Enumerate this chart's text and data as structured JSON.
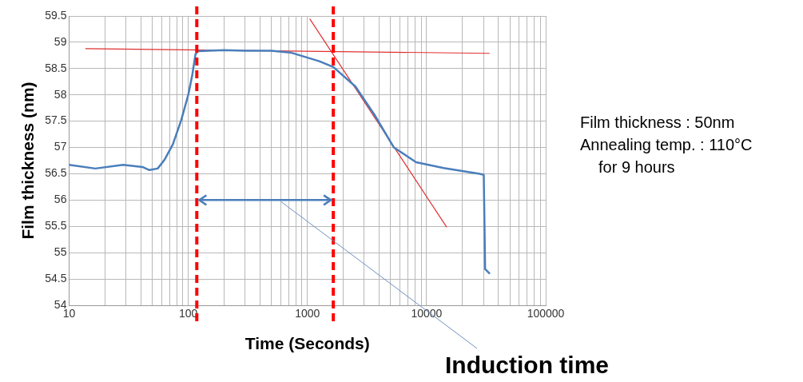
{
  "chart_data": {
    "type": "line",
    "xlabel": "Time (Seconds)",
    "ylabel": "Film thickness (nm)",
    "log": "x",
    "grid": true,
    "legend": false,
    "marker": "none",
    "xlim": [
      10,
      100000
    ],
    "ylim": [
      54,
      59.5
    ],
    "xticks": [
      10,
      {
        "value": 20,
        "label": null
      },
      {
        "value": 30,
        "label": null
      },
      {
        "value": 40,
        "label": null
      },
      {
        "value": 50,
        "label": null
      },
      {
        "value": 60,
        "label": null
      },
      {
        "value": 70,
        "label": null
      },
      {
        "value": 80,
        "label": null
      },
      {
        "value": 90,
        "label": null
      },
      100,
      {
        "value": 200,
        "label": null
      },
      {
        "value": 300,
        "label": null
      },
      {
        "value": 400,
        "label": null
      },
      {
        "value": 500,
        "label": null
      },
      {
        "value": 600,
        "label": null
      },
      {
        "value": 700,
        "label": null
      },
      {
        "value": 800,
        "label": null
      },
      {
        "value": 900,
        "label": null
      },
      1000,
      {
        "value": 2000,
        "label": null
      },
      {
        "value": 3000,
        "label": null
      },
      {
        "value": 4000,
        "label": null
      },
      {
        "value": 5000,
        "label": null
      },
      {
        "value": 6000,
        "label": null
      },
      {
        "value": 7000,
        "label": null
      },
      {
        "value": 8000,
        "label": null
      },
      {
        "value": 9000,
        "label": null
      },
      10000,
      {
        "value": 20000,
        "label": null
      },
      {
        "value": 30000,
        "label": null
      },
      {
        "value": 40000,
        "label": null
      },
      {
        "value": 50000,
        "label": null
      },
      {
        "value": 60000,
        "label": null
      },
      {
        "value": 70000,
        "label": null
      },
      {
        "value": 80000,
        "label": null
      },
      {
        "value": 90000,
        "label": null
      },
      100000
    ],
    "yticks": [
      54,
      54.5,
      55,
      55.5,
      56,
      56.5,
      57,
      57.5,
      58,
      58.5,
      59,
      59.5
    ],
    "series": [
      {
        "color": "#4a7ebb",
        "line_style": "solid",
        "x": [
          10,
          16.6,
          28.4,
          41.3,
          47.2,
          55.4,
          63.4,
          74.3,
          87.3,
          100,
          108,
          115,
          120,
          200,
          300,
          500,
          738,
          1260,
          1650,
          2530,
          3660,
          5320,
          8170,
          13900,
          27900,
          30200,
          31000,
          33600
        ],
        "values": [
          56.67,
          56.6,
          56.67,
          56.63,
          56.57,
          56.6,
          56.77,
          57.06,
          57.52,
          58.0,
          58.37,
          58.77,
          58.83,
          58.85,
          58.84,
          58.84,
          58.8,
          58.64,
          58.53,
          58.16,
          57.62,
          57.0,
          56.72,
          56.61,
          56.5,
          56.48,
          54.69,
          54.61
        ]
      },
      {
        "color": "#e03030",
        "line_style": "solid",
        "x": [
          13.8,
          33600
        ],
        "values": [
          58.88,
          58.79
        ]
      },
      {
        "color": "#e03030",
        "line_style": "solid",
        "x": [
          1050,
          14700
        ],
        "values": [
          59.44,
          55.49
        ]
      }
    ],
    "ref_lines": [
      {
        "axis": "x",
        "value": 118,
        "color": "#ff0000",
        "line_style": "dashed"
      },
      {
        "axis": "x",
        "value": 1650,
        "color": "#ff0000",
        "line_style": "dashed"
      }
    ],
    "annotations": [
      "Film thickness : 50nm",
      "Annealing temp. : 110°C",
      "for 9 hours",
      "Induction time"
    ]
  }
}
